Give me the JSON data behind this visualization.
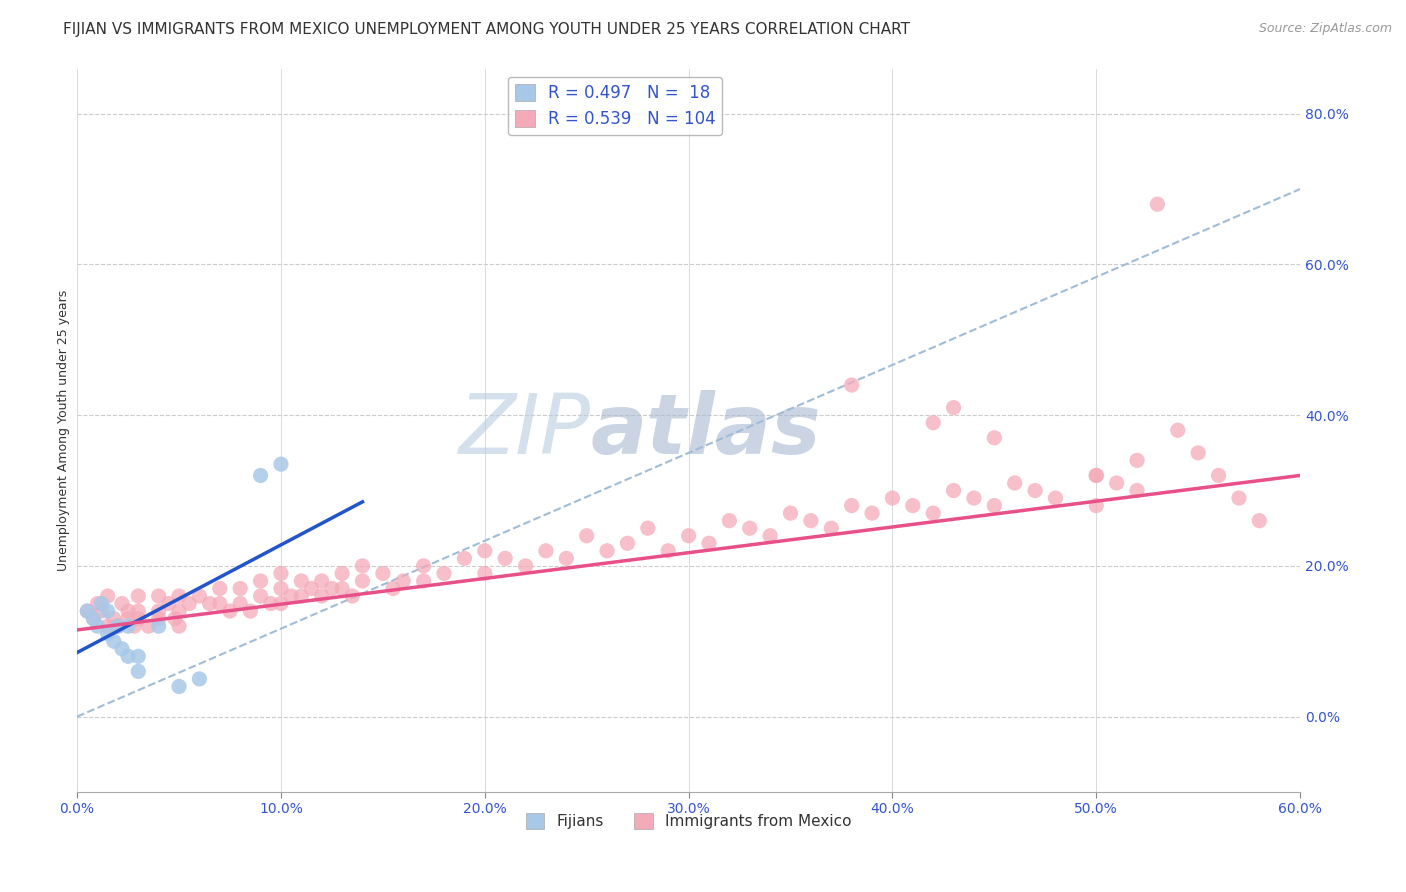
{
  "title": "FIJIAN VS IMMIGRANTS FROM MEXICO UNEMPLOYMENT AMONG YOUTH UNDER 25 YEARS CORRELATION CHART",
  "source": "Source: ZipAtlas.com",
  "ylabel_label": "Unemployment Among Youth under 25 years",
  "xmin": 0.0,
  "xmax": 0.6,
  "ymin": -0.1,
  "ymax": 0.86,
  "fijian_scatter_color": "#a8c8e8",
  "fijian_line_color": "#2255cc",
  "mexico_scatter_color": "#f4aab8",
  "mexico_line_color": "#e8508a",
  "dashed_line_color": "#a0bcd8",
  "legend_R1": "R = 0.497",
  "legend_N1": "N =  18",
  "legend_R2": "R = 0.539",
  "legend_N2": "N = 104",
  "legend_color1": "#a8c8e8",
  "legend_color2": "#f4aab8",
  "legend_text_color": "#3355cc",
  "watermark_part1": "ZIP",
  "watermark_part2": "atlas",
  "watermark_color1": "#b8cce0",
  "watermark_color2": "#a8b8d0",
  "grid_color": "#cccccc",
  "background_color": "#ffffff",
  "title_fontsize": 11,
  "axis_label_fontsize": 9,
  "tick_fontsize": 10,
  "figsize": [
    14.06,
    8.92
  ],
  "dpi": 100,
  "fijian_x": [
    0.005,
    0.008,
    0.01,
    0.012,
    0.015,
    0.015,
    0.018,
    0.02,
    0.022,
    0.025,
    0.025,
    0.03,
    0.03,
    0.04,
    0.05,
    0.06,
    0.09,
    0.1
  ],
  "fijian_y": [
    0.14,
    0.13,
    0.12,
    0.15,
    0.14,
    0.11,
    0.1,
    0.12,
    0.09,
    0.12,
    0.08,
    0.08,
    0.06,
    0.12,
    0.04,
    0.05,
    0.32,
    0.335
  ],
  "mexico_x": [
    0.005,
    0.008,
    0.01,
    0.012,
    0.015,
    0.015,
    0.018,
    0.02,
    0.022,
    0.025,
    0.025,
    0.028,
    0.03,
    0.03,
    0.03,
    0.035,
    0.04,
    0.04,
    0.04,
    0.045,
    0.048,
    0.05,
    0.05,
    0.05,
    0.055,
    0.06,
    0.065,
    0.07,
    0.07,
    0.075,
    0.08,
    0.08,
    0.085,
    0.09,
    0.09,
    0.095,
    0.1,
    0.1,
    0.1,
    0.105,
    0.11,
    0.11,
    0.115,
    0.12,
    0.12,
    0.125,
    0.13,
    0.13,
    0.135,
    0.14,
    0.14,
    0.15,
    0.155,
    0.16,
    0.17,
    0.17,
    0.18,
    0.19,
    0.2,
    0.2,
    0.21,
    0.22,
    0.23,
    0.24,
    0.25,
    0.26,
    0.27,
    0.28,
    0.29,
    0.3,
    0.31,
    0.32,
    0.33,
    0.34,
    0.35,
    0.36,
    0.37,
    0.38,
    0.39,
    0.4,
    0.41,
    0.42,
    0.43,
    0.44,
    0.45,
    0.46,
    0.47,
    0.48,
    0.5,
    0.5,
    0.51,
    0.52,
    0.53,
    0.54,
    0.55,
    0.56,
    0.57,
    0.58,
    0.38,
    0.42,
    0.43,
    0.45,
    0.5,
    0.52
  ],
  "mexico_y": [
    0.14,
    0.13,
    0.15,
    0.14,
    0.12,
    0.16,
    0.13,
    0.12,
    0.15,
    0.13,
    0.14,
    0.12,
    0.14,
    0.16,
    0.13,
    0.12,
    0.14,
    0.16,
    0.13,
    0.15,
    0.13,
    0.16,
    0.14,
    0.12,
    0.15,
    0.16,
    0.15,
    0.17,
    0.15,
    0.14,
    0.17,
    0.15,
    0.14,
    0.16,
    0.18,
    0.15,
    0.17,
    0.15,
    0.19,
    0.16,
    0.18,
    0.16,
    0.17,
    0.18,
    0.16,
    0.17,
    0.19,
    0.17,
    0.16,
    0.18,
    0.2,
    0.19,
    0.17,
    0.18,
    0.2,
    0.18,
    0.19,
    0.21,
    0.22,
    0.19,
    0.21,
    0.2,
    0.22,
    0.21,
    0.24,
    0.22,
    0.23,
    0.25,
    0.22,
    0.24,
    0.23,
    0.26,
    0.25,
    0.24,
    0.27,
    0.26,
    0.25,
    0.28,
    0.27,
    0.29,
    0.28,
    0.27,
    0.3,
    0.29,
    0.28,
    0.31,
    0.3,
    0.29,
    0.32,
    0.28,
    0.31,
    0.3,
    0.68,
    0.38,
    0.35,
    0.32,
    0.29,
    0.26,
    0.44,
    0.39,
    0.41,
    0.37,
    0.32,
    0.34
  ],
  "fijian_trendline_x": [
    0.0,
    0.14
  ],
  "fijian_trendline_y": [
    0.085,
    0.285
  ],
  "mexico_trendline_x": [
    0.0,
    0.6
  ],
  "mexico_trendline_y": [
    0.115,
    0.32
  ],
  "dashed_trendline_x": [
    0.0,
    0.6
  ],
  "dashed_trendline_y": [
    0.0,
    0.7
  ]
}
